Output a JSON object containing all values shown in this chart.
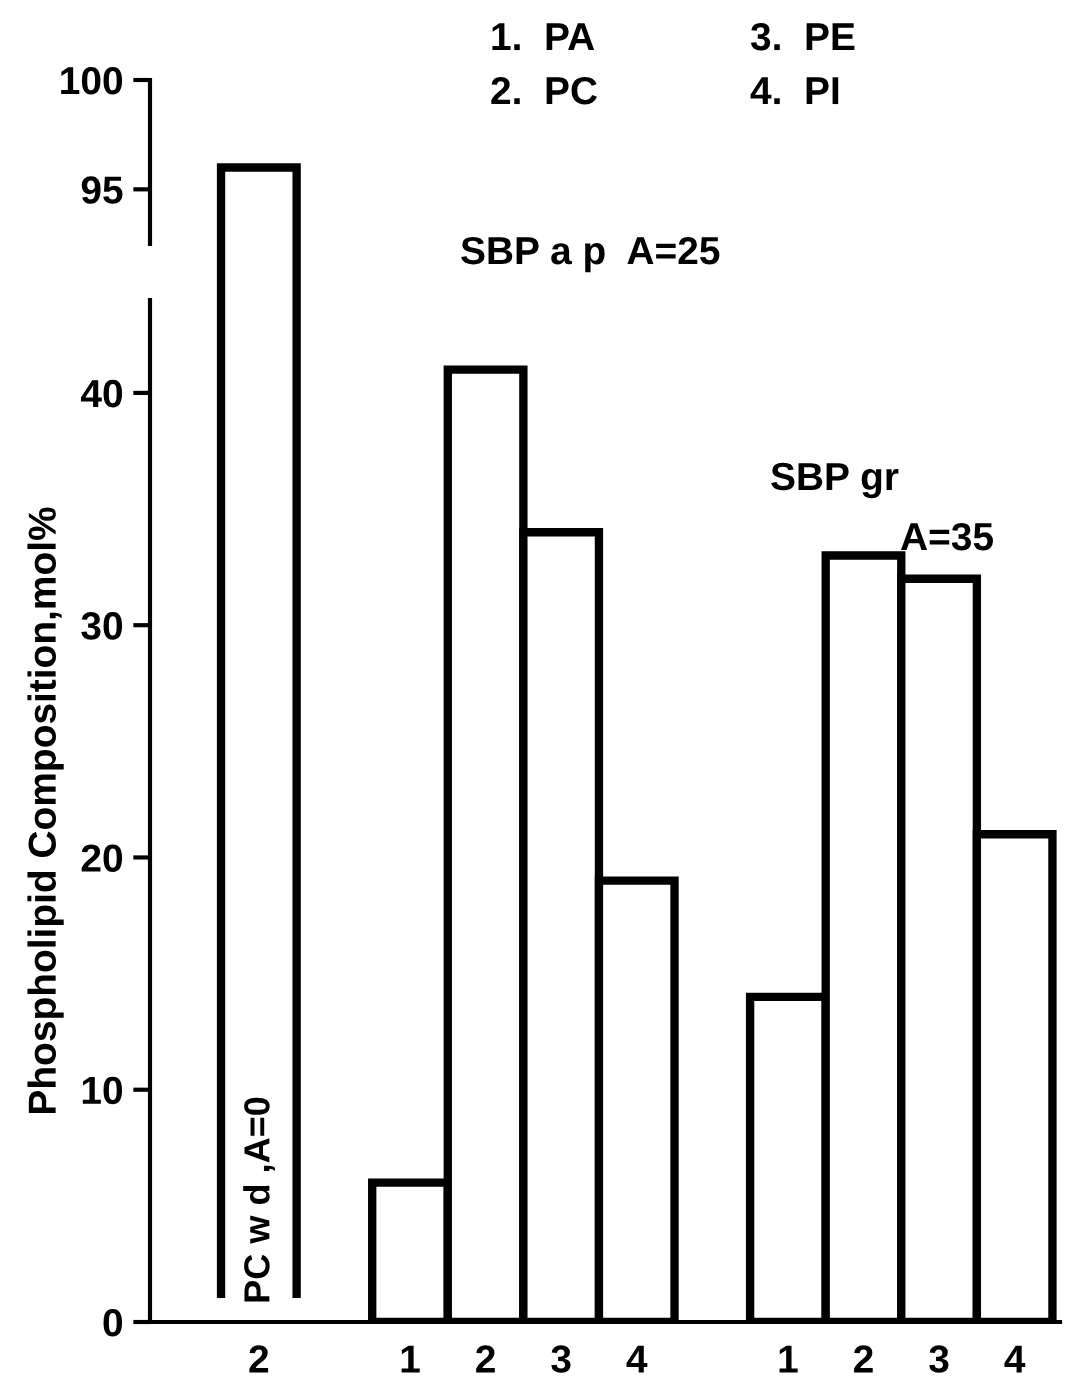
{
  "chart_data": [
    {
      "type": "bar",
      "categories": [
        "2",
        null,
        "1",
        "2",
        "3",
        "4",
        null,
        "1",
        "2",
        "3",
        "4"
      ],
      "tick_labels": "y",
      "values": [
        96,
        null,
        null,
        null,
        null,
        null,
        null,
        null,
        null,
        null,
        null
      ],
      "color": "#ffffff",
      "ylim": [
        92.5,
        100
      ],
      "yticks": [
        95,
        100
      ],
      "grid": false,
      "annotations": [
        "1.  PA",
        "2.  PC",
        "3.  PE",
        "4.  PI"
      ]
    },
    {
      "type": "bar",
      "categories": [
        "2",
        null,
        "1",
        "2",
        "3",
        "4",
        null,
        "1",
        "2",
        "3",
        "4"
      ],
      "values": [
        null,
        null,
        6,
        41,
        34,
        19,
        null,
        14,
        33,
        32,
        21
      ],
      "color": "#ffffff",
      "ylim": [
        0,
        44
      ],
      "yticks": [
        0,
        10,
        20,
        30,
        40
      ],
      "grid": false,
      "ylabel": "Phospholipid Composition,mol%",
      "annotations": [
        "PC w d ,A=0",
        "SBP a p  A=25",
        "SBP gr",
        "A=35"
      ]
    }
  ]
}
